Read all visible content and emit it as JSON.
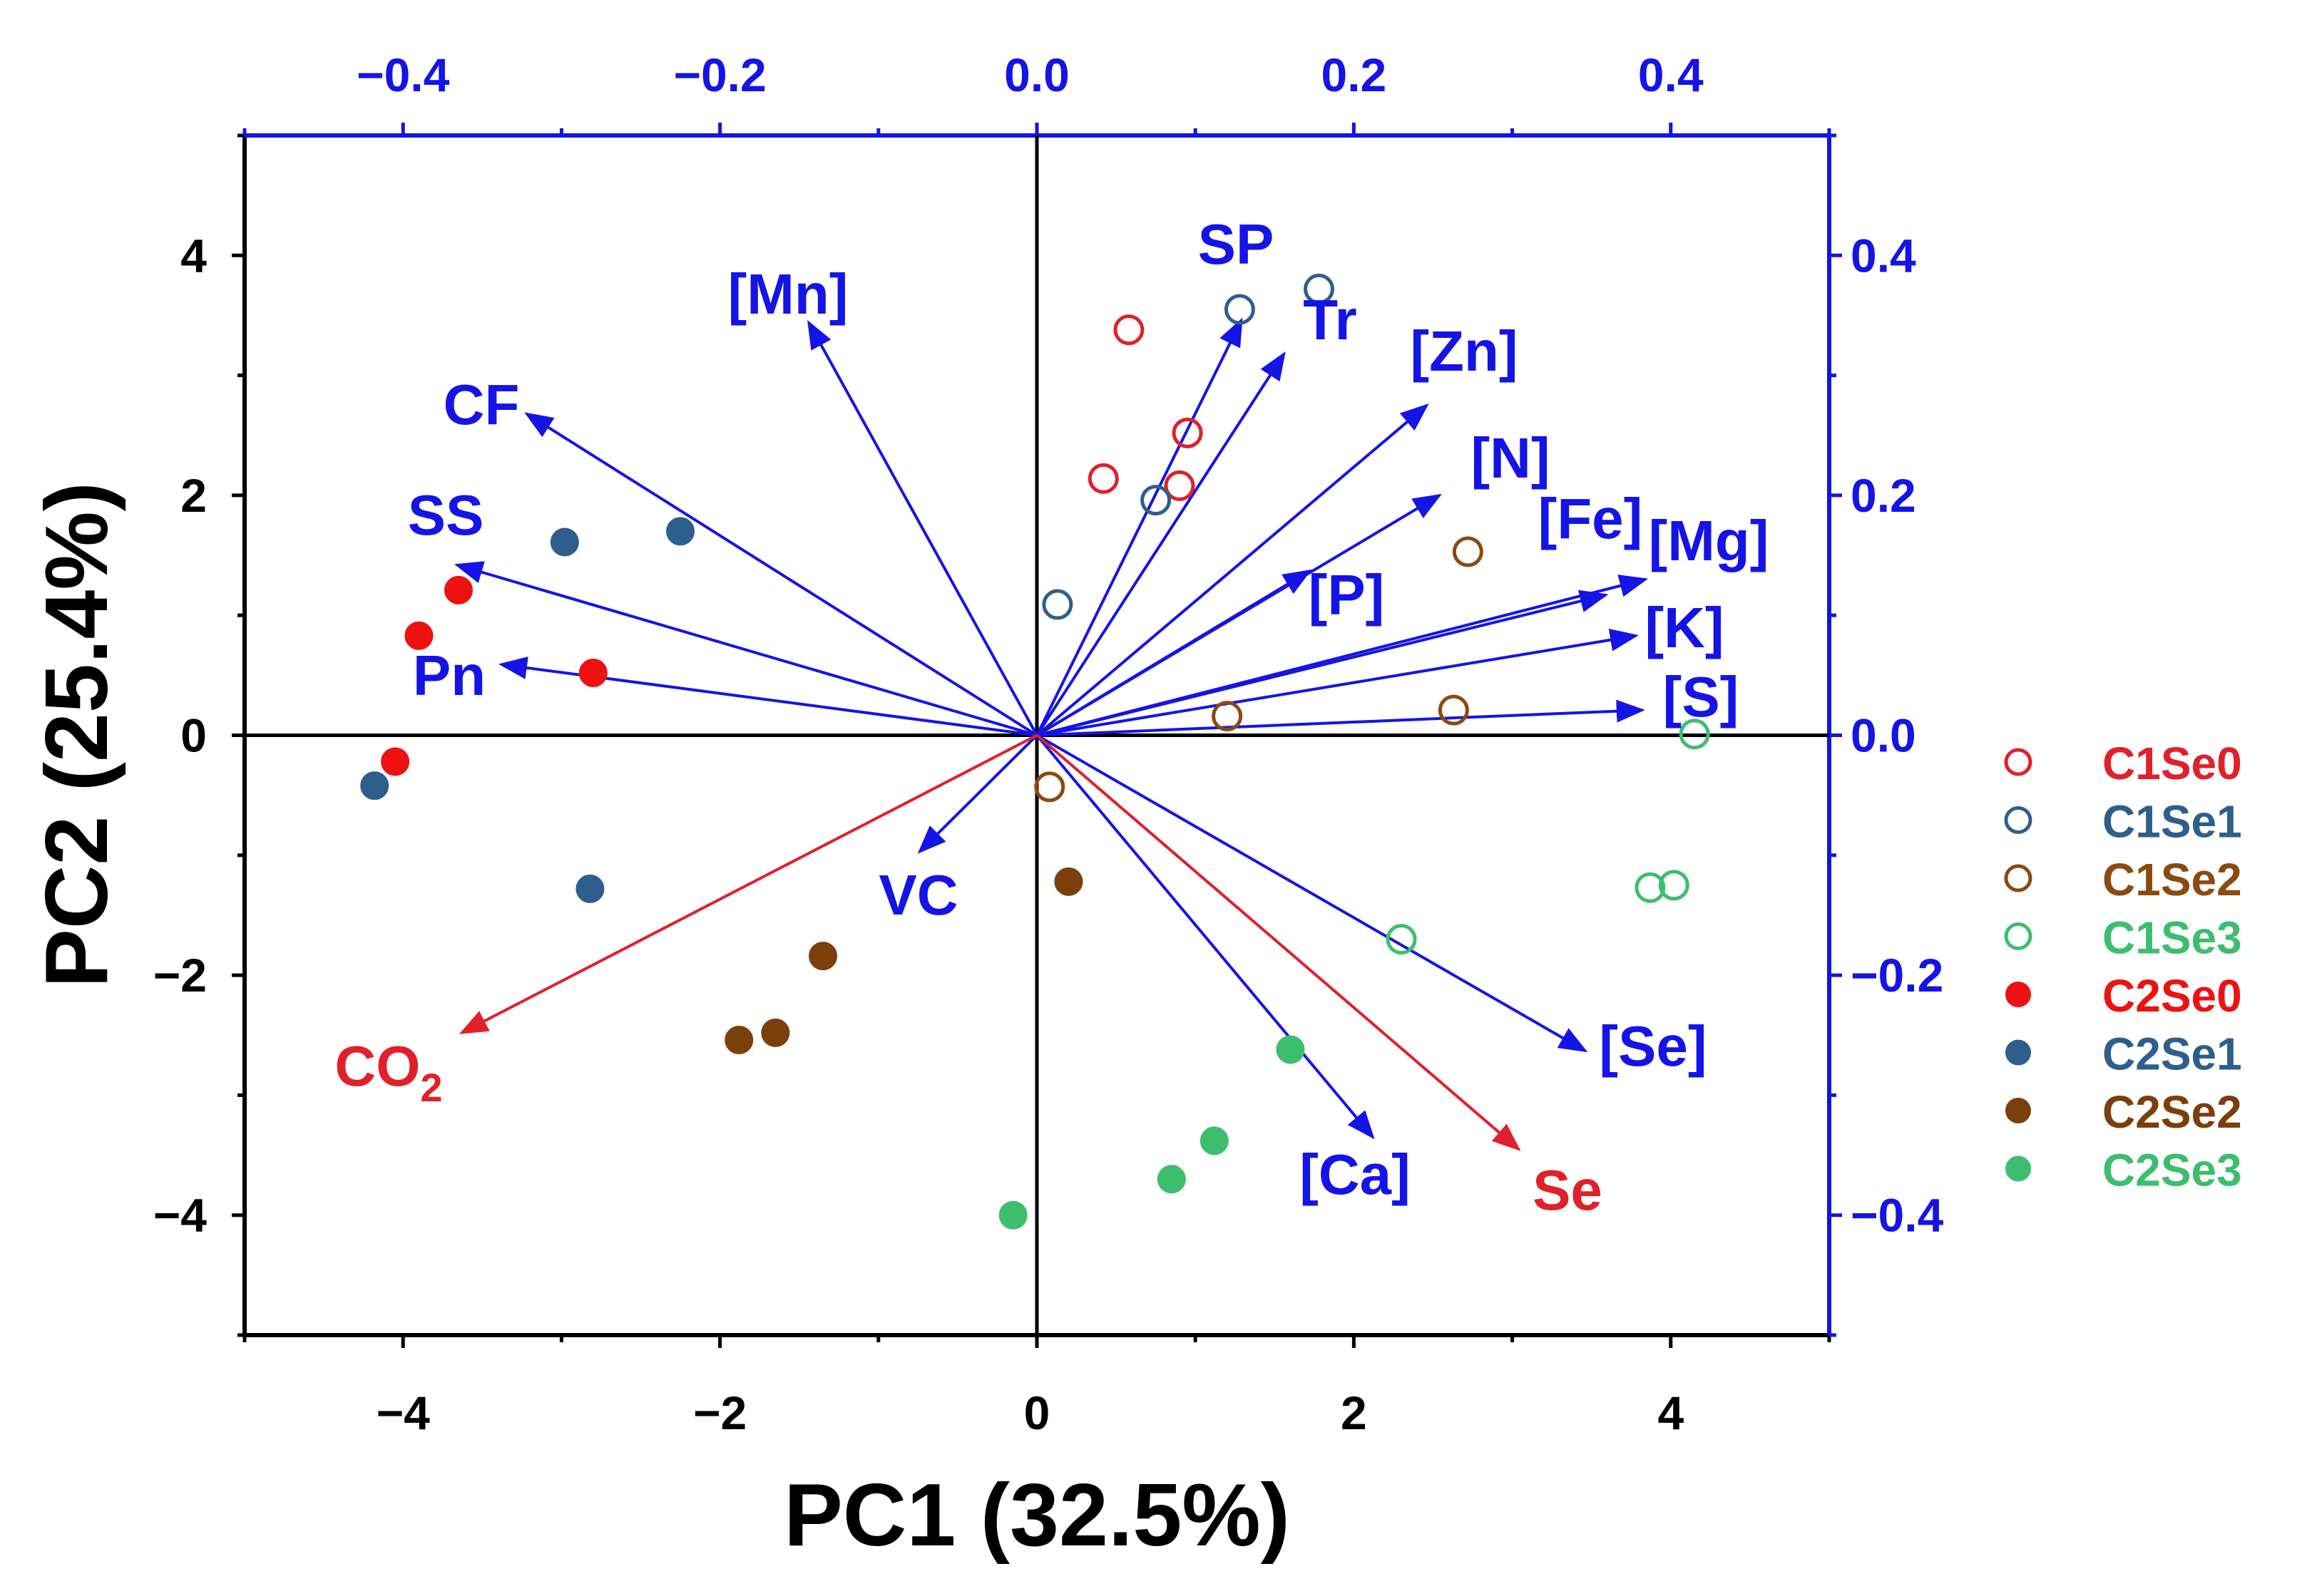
{
  "chart_data": {
    "type": "scatter",
    "subtype": "pca-biplot",
    "xlabel": "PC1 (32.5%)",
    "ylabel": "PC2 (25.4%)",
    "xlim": [
      -5,
      5
    ],
    "ylim": [
      -5,
      5
    ],
    "x_ticks": [
      -4,
      -2,
      0,
      2,
      4
    ],
    "x_tick_labels": [
      "−4",
      "−2",
      "0",
      "2",
      "4"
    ],
    "y_ticks": [
      4,
      2,
      0,
      -2,
      -4
    ],
    "y_tick_labels": [
      "4",
      "2",
      "0",
      "−2",
      "−4"
    ],
    "loading_axis_range": [
      -0.5,
      0.5
    ],
    "top_ticks": [
      -0.4,
      -0.2,
      0.0,
      0.2,
      0.4
    ],
    "top_tick_labels": [
      "−0.4",
      "−0.2",
      "0.0",
      "0.2",
      "0.4"
    ],
    "right_ticks": [
      0.4,
      0.2,
      0.0,
      -0.2,
      -0.4
    ],
    "right_tick_labels": [
      "0.4",
      "0.2",
      "0.0",
      "−0.2",
      "−0.4"
    ],
    "colors": {
      "axis_black": "#000000",
      "loading_blue": "#1414e6",
      "response_red": "#e0202a",
      "C1Se0": "#e0202a",
      "C1Se1": "#2e5f8c",
      "C1Se2": "#8b4a10",
      "C1Se3": "#3dbe6e",
      "C2Se0": "#ee1111",
      "C2Se1": "#2e5f8c",
      "C2Se2": "#7b3f0c",
      "C2Se3": "#3dbe6e"
    },
    "series": [
      {
        "name": "C1Se0",
        "marker": "open-circle",
        "x": [
          0.58,
          0.42,
          0.95,
          0.9
        ],
        "y": [
          3.38,
          2.14,
          2.52,
          2.08
        ]
      },
      {
        "name": "C1Se1",
        "marker": "open-circle",
        "x": [
          1.78,
          1.28,
          0.75,
          0.13
        ],
        "y": [
          3.72,
          3.55,
          1.96,
          1.09
        ]
      },
      {
        "name": "C1Se2",
        "marker": "open-circle",
        "x": [
          2.72,
          2.63,
          1.2,
          0.08
        ],
        "y": [
          1.53,
          0.21,
          0.16,
          -0.43
        ]
      },
      {
        "name": "C1Se3",
        "marker": "open-circle",
        "x": [
          4.15,
          4.02,
          3.87,
          2.3
        ],
        "y": [
          0.01,
          -1.25,
          -1.27,
          -1.7
        ]
      },
      {
        "name": "C2Se0",
        "marker": "filled-circle",
        "x": [
          -3.65,
          -3.9,
          -2.8,
          -4.05
        ],
        "y": [
          1.21,
          0.83,
          0.52,
          -0.22
        ]
      },
      {
        "name": "C2Se1",
        "marker": "filled-circle",
        "x": [
          -2.25,
          -2.98,
          -4.18,
          -2.82
        ],
        "y": [
          1.7,
          1.61,
          -0.42,
          -1.28
        ]
      },
      {
        "name": "C2Se2",
        "marker": "filled-circle",
        "x": [
          0.2,
          -1.35,
          -1.65,
          -1.88
        ],
        "y": [
          -1.22,
          -1.84,
          -2.48,
          -2.54
        ]
      },
      {
        "name": "C2Se3",
        "marker": "filled-circle",
        "x": [
          1.6,
          1.12,
          0.85,
          -0.15
        ],
        "y": [
          -2.62,
          -3.38,
          -3.7,
          -4.0
        ]
      }
    ],
    "loadings": [
      {
        "label": "[Mn]",
        "color": "#1414e6",
        "x": -0.144,
        "y": 0.344
      },
      {
        "label": "CF",
        "color": "#1414e6",
        "x": -0.322,
        "y": 0.268
      },
      {
        "label": "SS",
        "color": "#1414e6",
        "x": -0.366,
        "y": 0.142
      },
      {
        "label": "Pn",
        "color": "#1414e6",
        "x": -0.338,
        "y": 0.059
      },
      {
        "label": "VC",
        "color": "#1414e6",
        "x": -0.074,
        "y": -0.097
      },
      {
        "label": "SP",
        "color": "#1414e6",
        "x": 0.129,
        "y": 0.346
      },
      {
        "label": "Tr",
        "color": "#1414e6",
        "x": 0.156,
        "y": 0.318
      },
      {
        "label": "[Zn]",
        "color": "#1414e6",
        "x": 0.246,
        "y": 0.275
      },
      {
        "label": "[N]",
        "color": "#1414e6",
        "x": 0.254,
        "y": 0.2
      },
      {
        "label": "[P]",
        "color": "#1414e6",
        "x": 0.172,
        "y": 0.137
      },
      {
        "label": "[Fe]",
        "color": "#1414e6",
        "x": 0.359,
        "y": 0.117
      },
      {
        "label": "[Mg]",
        "color": "#1414e6",
        "x": 0.384,
        "y": 0.13
      },
      {
        "label": "[K]",
        "color": "#1414e6",
        "x": 0.378,
        "y": 0.083
      },
      {
        "label": "[S]",
        "color": "#1414e6",
        "x": 0.382,
        "y": 0.021
      },
      {
        "label": "[Se]",
        "color": "#1414e6",
        "x": 0.346,
        "y": -0.263
      },
      {
        "label": "[Ca]",
        "color": "#1414e6",
        "x": 0.212,
        "y": -0.335
      },
      {
        "label": "Se",
        "color": "#e0202a",
        "x": 0.304,
        "y": -0.345
      },
      {
        "label": "CO",
        "sub": "2",
        "color": "#e0202a",
        "x": -0.363,
        "y": -0.248
      }
    ],
    "legend": {
      "position": "right",
      "entries": [
        "C1Se0",
        "C1Se1",
        "C1Se2",
        "C1Se3",
        "C2Se0",
        "C2Se1",
        "C2Se2",
        "C2Se3"
      ]
    }
  }
}
